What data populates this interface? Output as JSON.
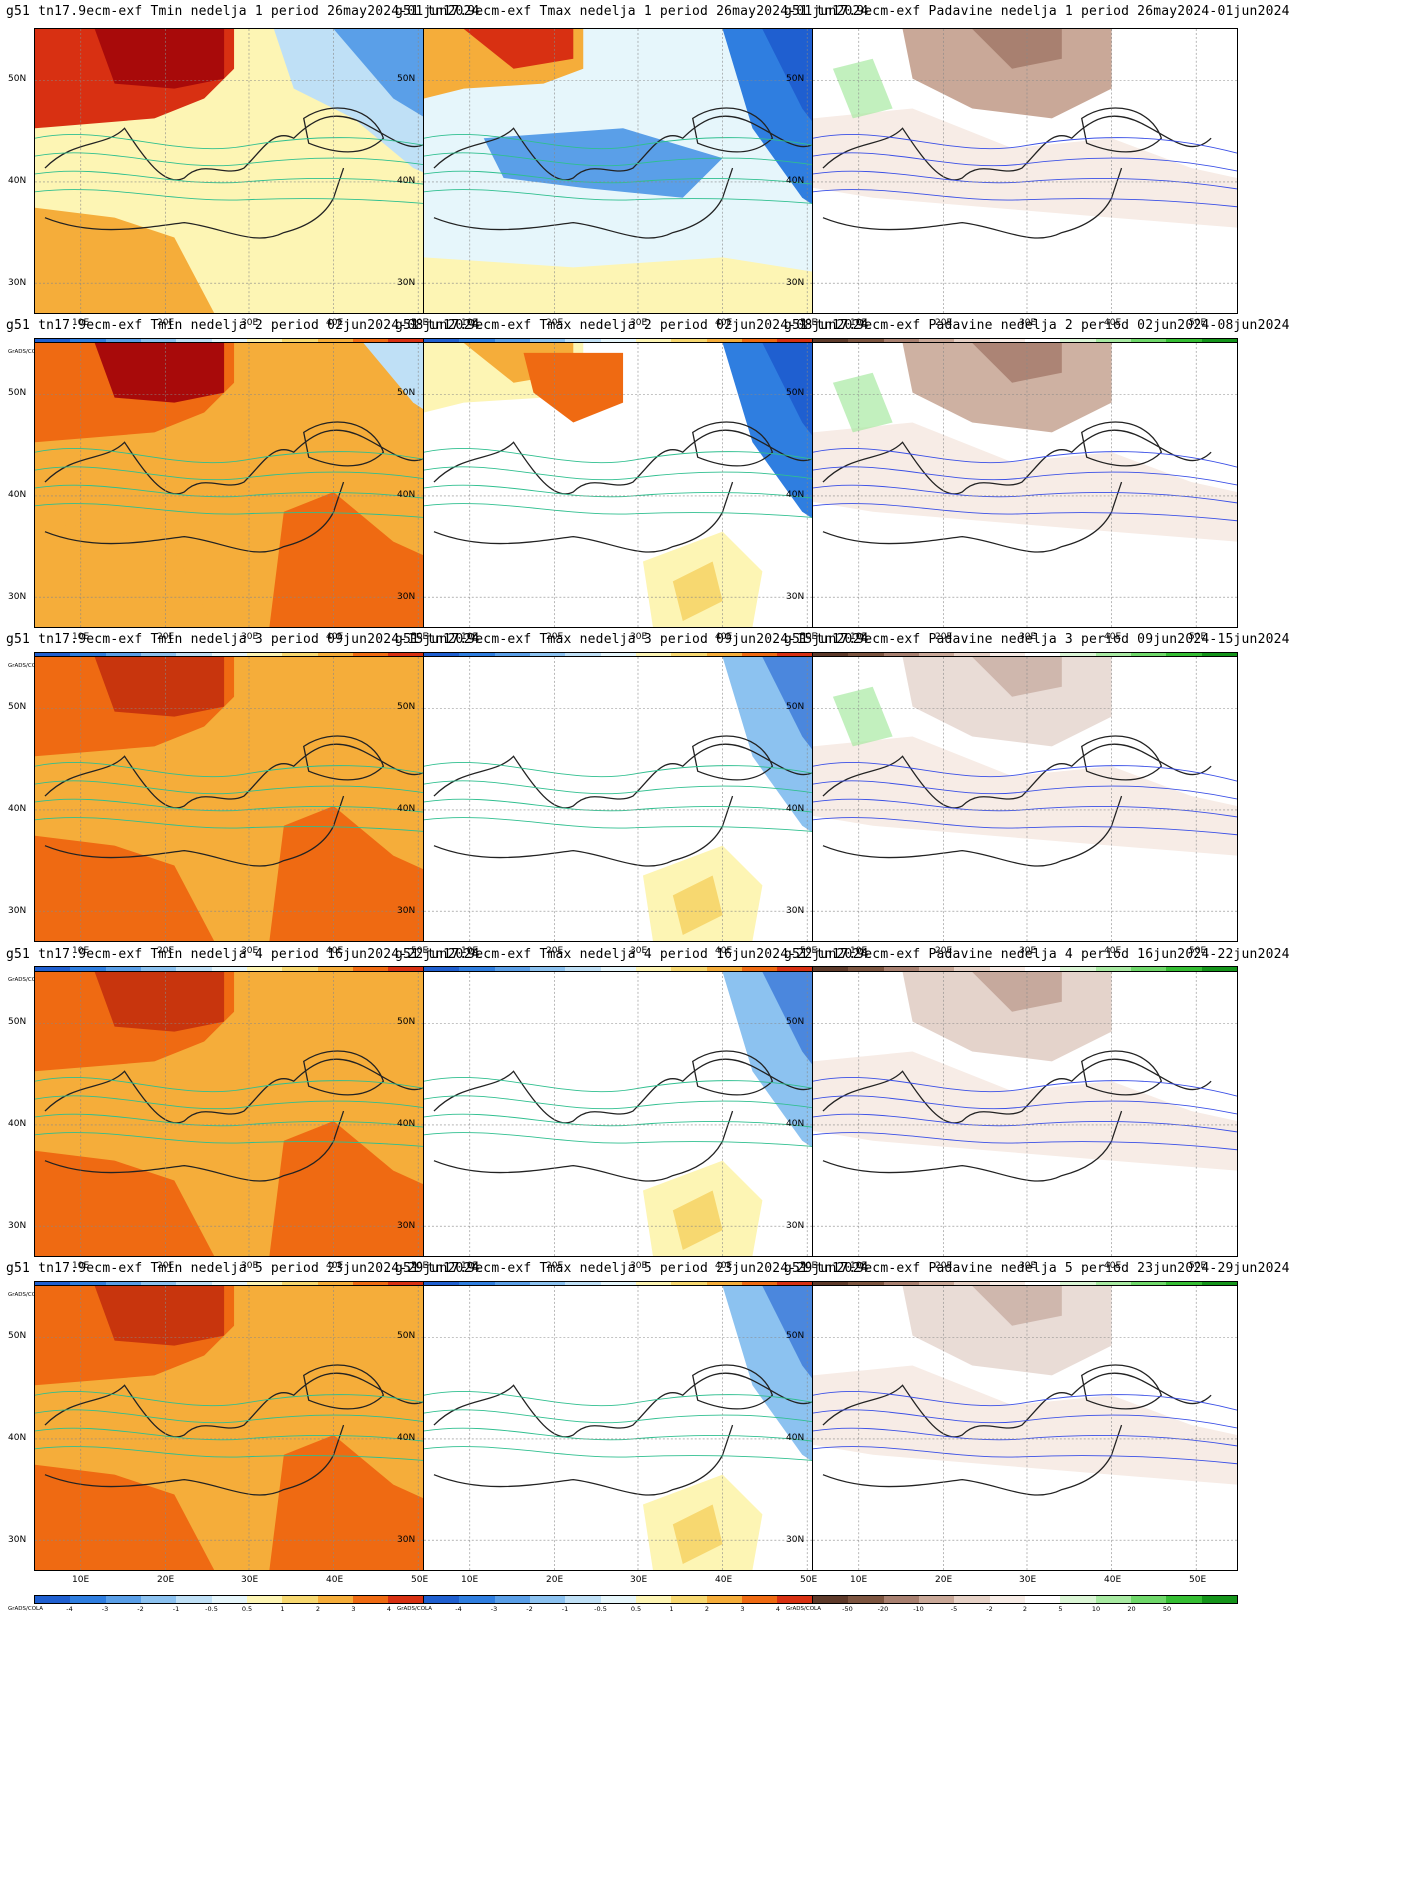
{
  "figure": {
    "watermark": "GrADS/COLA",
    "lat_labels": [
      "50N",
      "40N",
      "30N"
    ],
    "lon_labels": [
      "10E",
      "20E",
      "30E",
      "40E",
      "50E"
    ]
  },
  "colorbars": {
    "temperature": {
      "colors": [
        "#1f5fd0",
        "#2f7ee0",
        "#5a9fe8",
        "#8cc2f0",
        "#bfe0f6",
        "#e6f6fb",
        "#fdf5b4",
        "#f7d870",
        "#f5ad3a",
        "#ef6a12",
        "#d83012",
        "#a80a0a"
      ],
      "tick_labels": [
        "-4",
        "-3",
        "-2",
        "-1",
        "-0.5",
        "0.5",
        "1",
        "2",
        "3",
        "4"
      ]
    },
    "precipitation": {
      "colors": [
        "#5e3a2a",
        "#7d5540",
        "#a88070",
        "#c9a898",
        "#e6d1c6",
        "#f7ece6",
        "#ffffff",
        "#dbf6d6",
        "#a8eaa2",
        "#6fd86a",
        "#35be33",
        "#14941a"
      ],
      "tick_labels": [
        "-50",
        "-20",
        "-10",
        "-5",
        "-2",
        "2",
        "5",
        "10",
        "20",
        "50"
      ]
    }
  },
  "panels": [
    {
      "title": "g51 tn17.9ecm-exf Tmin nedelja 1 period 26may2024-01jun2024",
      "variable": "Tmin",
      "week": 1
    },
    {
      "title": "g51 tn17.9ecm-exf Tmax nedelja 1 period 26may2024-01jun2024",
      "variable": "Tmax",
      "week": 1
    },
    {
      "title": "g51 tn17.9ecm-exf Padavine nedelja 1 period 26may2024-01jun2024",
      "variable": "Padavine",
      "week": 1
    },
    {
      "title": "g51 tn17.9ecm-exf Tmin nedelja 2 period 02jun2024-08jun2024",
      "variable": "Tmin",
      "week": 2
    },
    {
      "title": "g51 tn17.9ecm-exf Tmax nedelja 2 period 02jun2024-08jun2024",
      "variable": "Tmax",
      "week": 2
    },
    {
      "title": "g51 tn17.9ecm-exf Padavine nedelja 2 period 02jun2024-08jun2024",
      "variable": "Padavine",
      "week": 2
    },
    {
      "title": "g51 tn17.9ecm-exf Tmin nedelja 3 period 09jun2024-15jun2024",
      "variable": "Tmin",
      "week": 3
    },
    {
      "title": "g51 tn17.9ecm-exf Tmax nedelja 3 period 09jun2024-15jun2024",
      "variable": "Tmax",
      "week": 3
    },
    {
      "title": "g51 tn17.9ecm-exf Padavine nedelja 3 period 09jun2024-15jun2024",
      "variable": "Padavine",
      "week": 3
    },
    {
      "title": "g51 tn17.9ecm-exf Tmin nedelja 4 period 16jun2024-22jun2024",
      "variable": "Tmin",
      "week": 4
    },
    {
      "title": "g51 tn17.9ecm-exf Tmax nedelja 4 period 16jun2024-22jun2024",
      "variable": "Tmax",
      "week": 4
    },
    {
      "title": "g51 tn17.9ecm-exf Padavine nedelja 4 period 16jun2024-22jun2024",
      "variable": "Padavine",
      "week": 4
    },
    {
      "title": "g51 tn17.9ecm-exf Tmin nedelja 5 period 23jun2024-29jun2024",
      "variable": "Tmin",
      "week": 5
    },
    {
      "title": "g51 tn17.9ecm-exf Tmax nedelja 5 period 23jun2024-29jun2024",
      "variable": "Tmax",
      "week": 5
    },
    {
      "title": "g51 tn17.9ecm-exf Padavine nedelja 5 period 23jun2024-29jun2024",
      "variable": "Padavine",
      "week": 5
    }
  ]
}
